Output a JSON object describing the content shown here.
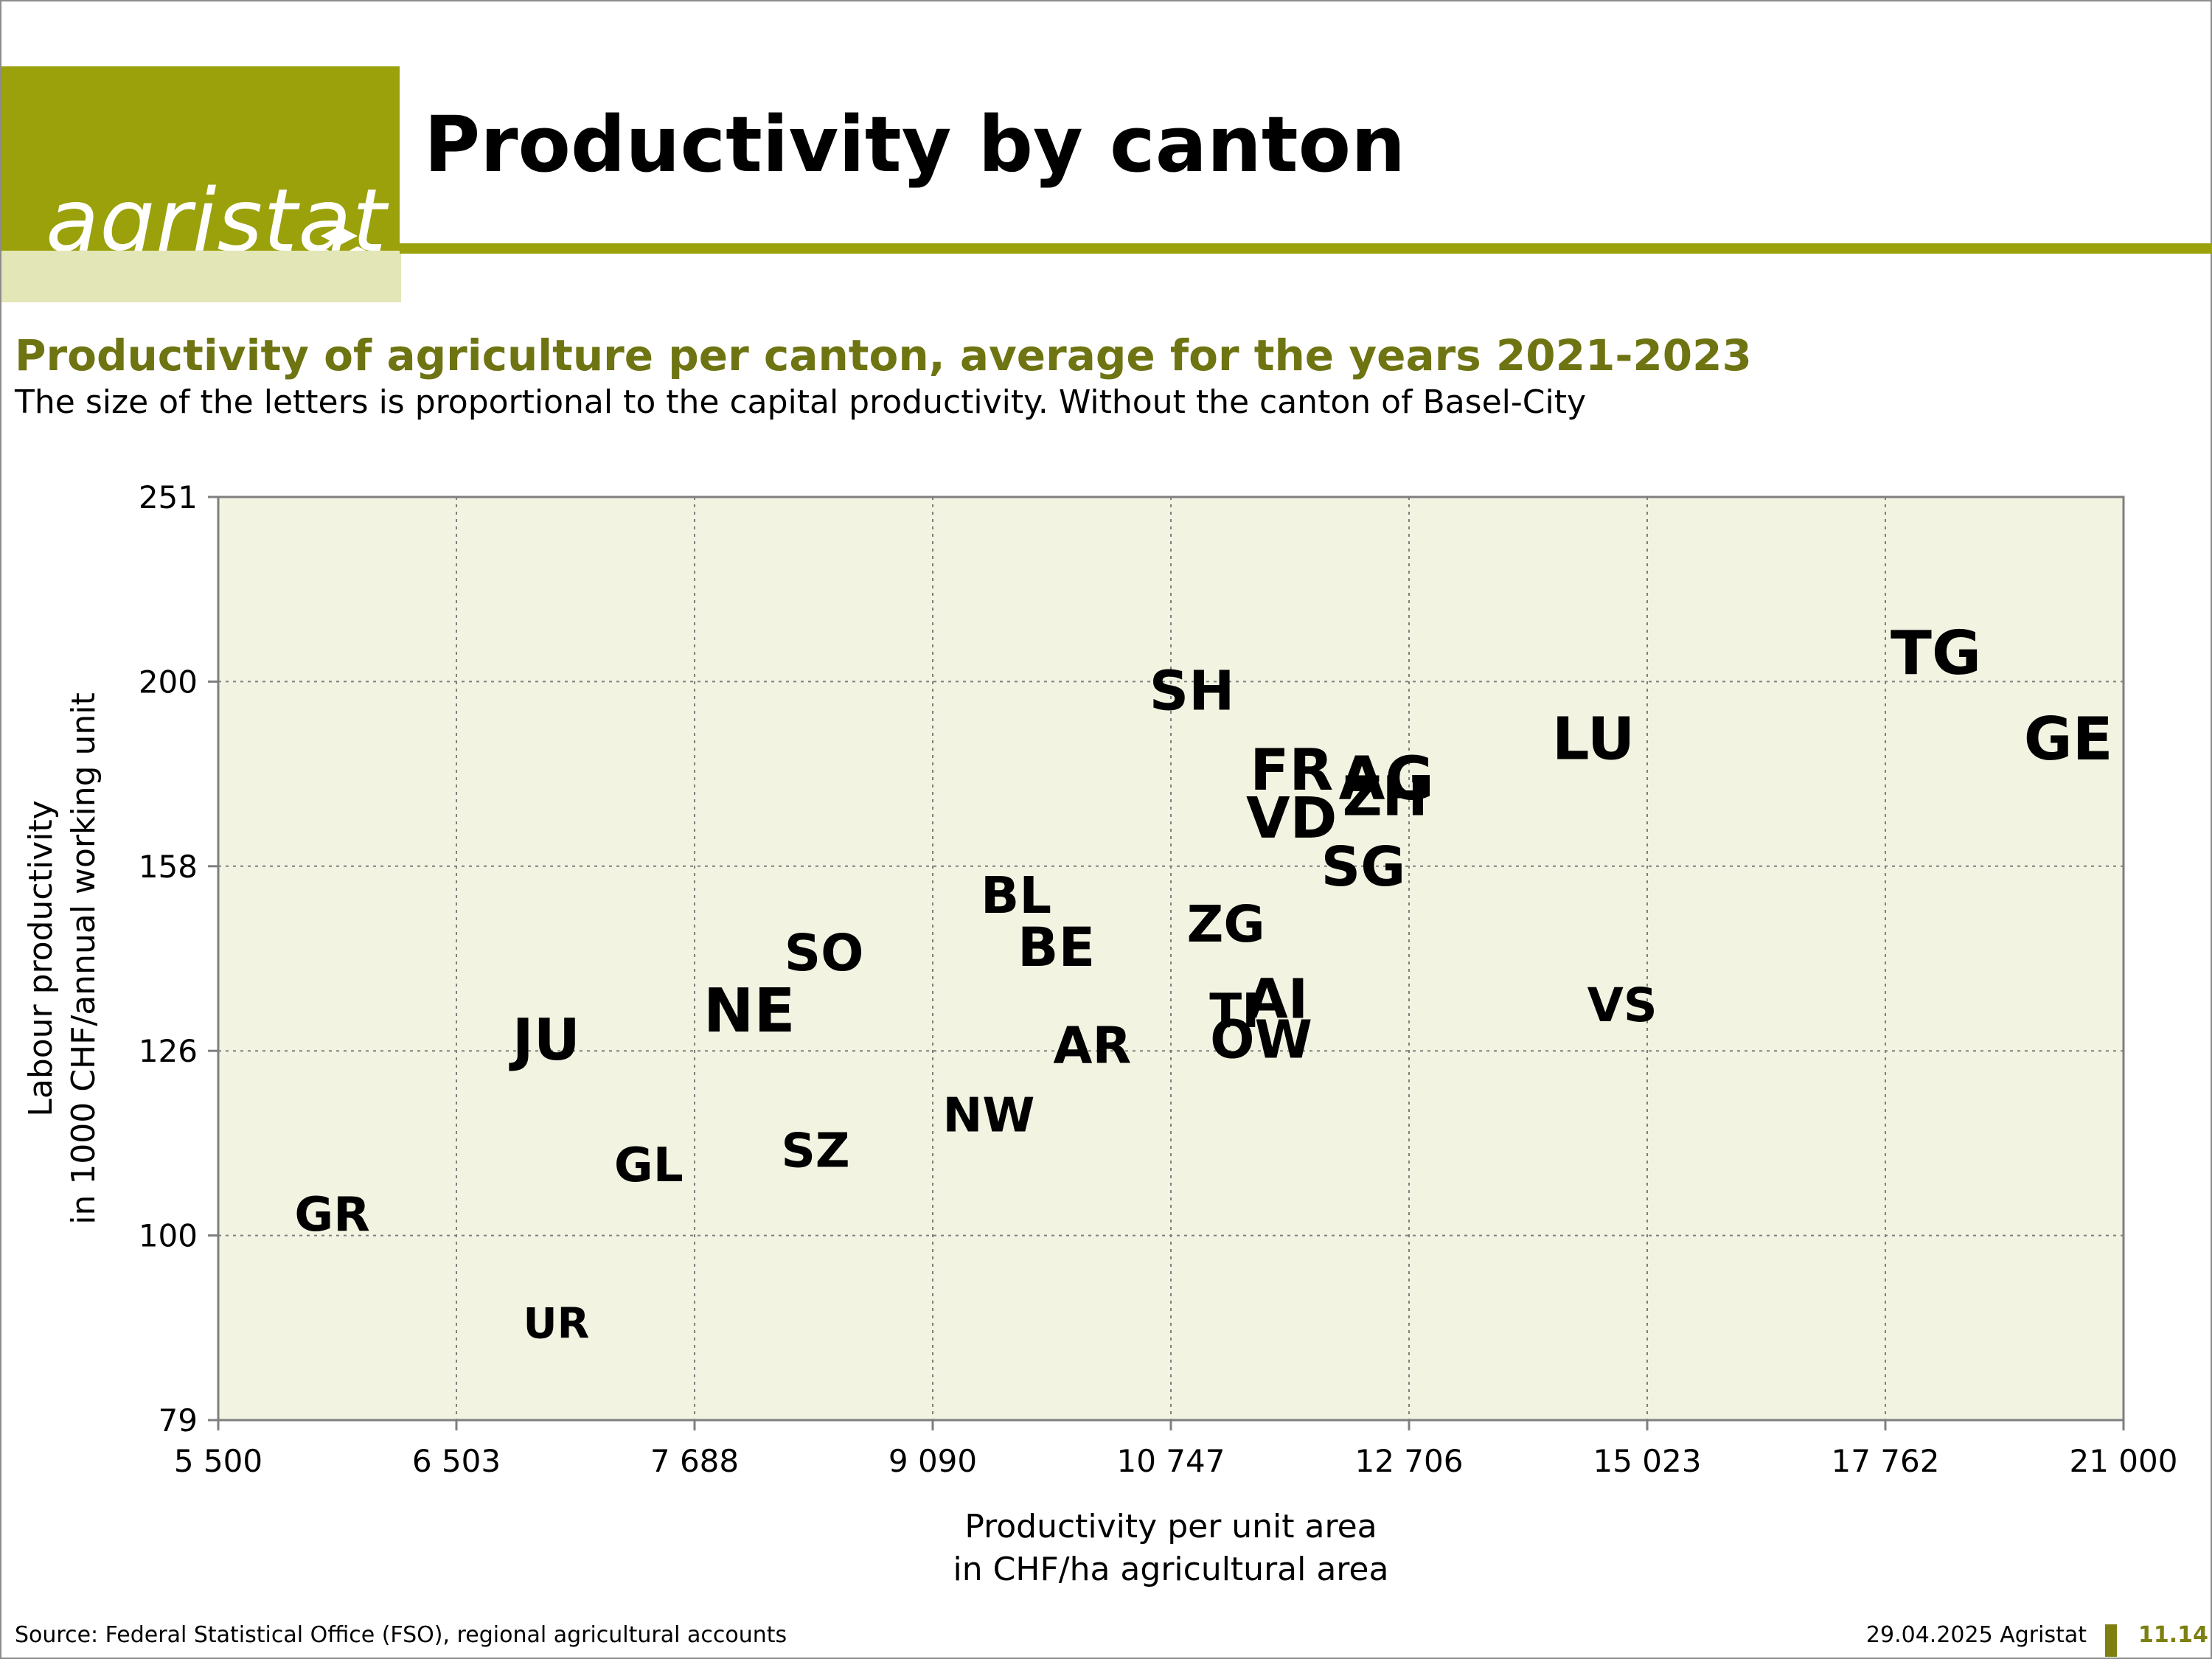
{
  "header": {
    "logo_text": "agristat",
    "page_title": "Productivity by canton"
  },
  "colors": {
    "brand": "#9aa10a",
    "brand_light": "#e3e6b6",
    "title": "#6e7411",
    "plot_background": "#f3f3e2",
    "grid": "#7f7f7f"
  },
  "chart_data": {
    "type": "scatter",
    "title": "Productivity of agriculture per canton, average for the years 2021-2023",
    "subtitle": "The size of the letters is proportional to the capital productivity. Without the canton of Basel-City",
    "xlabel": [
      "Productivity per unit area",
      "in CHF/ha agricultural area"
    ],
    "ylabel": [
      "Labour productivity",
      "in 1000 CHF/annual working unit"
    ],
    "xlim": [
      5500,
      21000
    ],
    "ylim": [
      79,
      251
    ],
    "x_ticks": [
      5500,
      6503,
      7688,
      9090,
      10747,
      12706,
      15023,
      17762,
      21000
    ],
    "x_tick_labels": [
      "5 500",
      "6 503",
      "7 688",
      "9 090",
      "10 747",
      "12 706",
      "15 023",
      "17 762",
      "21 000"
    ],
    "y_ticks": [
      79,
      100,
      126,
      158,
      200,
      251
    ],
    "y_tick_labels": [
      "79",
      "100",
      "126",
      "158",
      "200",
      "251"
    ],
    "grid": true,
    "marker": "text label sized by capital productivity",
    "points": [
      {
        "label": "TG",
        "x": 18450,
        "y": 208,
        "size": 1.0
      },
      {
        "label": "GE",
        "x": 20250,
        "y": 187,
        "size": 0.96
      },
      {
        "label": "SH",
        "x": 10920,
        "y": 198,
        "size": 0.82
      },
      {
        "label": "LU",
        "x": 14500,
        "y": 187,
        "size": 0.94
      },
      {
        "label": "AG",
        "x": 12520,
        "y": 178,
        "size": 0.98
      },
      {
        "label": "FR",
        "x": 11740,
        "y": 180,
        "size": 0.9
      },
      {
        "label": "ZH",
        "x": 12510,
        "y": 174,
        "size": 0.82
      },
      {
        "label": "VD",
        "x": 11740,
        "y": 169,
        "size": 0.88
      },
      {
        "label": "SG",
        "x": 12330,
        "y": 158,
        "size": 0.82
      },
      {
        "label": "BL",
        "x": 9670,
        "y": 153,
        "size": 0.68
      },
      {
        "label": "ZG",
        "x": 11200,
        "y": 148,
        "size": 0.68
      },
      {
        "label": "BE",
        "x": 9950,
        "y": 144,
        "size": 0.78
      },
      {
        "label": "SO",
        "x": 8450,
        "y": 143,
        "size": 0.68
      },
      {
        "label": "NE",
        "x": 8010,
        "y": 133,
        "size": 1.0
      },
      {
        "label": "AI",
        "x": 11620,
        "y": 135,
        "size": 0.8
      },
      {
        "label": "VS",
        "x": 14780,
        "y": 134,
        "size": 0.56
      },
      {
        "label": "TI",
        "x": 11270,
        "y": 133,
        "size": 0.58
      },
      {
        "label": "OW",
        "x": 11490,
        "y": 128,
        "size": 0.74
      },
      {
        "label": "JU",
        "x": 6950,
        "y": 128,
        "size": 0.9
      },
      {
        "label": "AR",
        "x": 10200,
        "y": 127,
        "size": 0.68
      },
      {
        "label": "NW",
        "x": 9480,
        "y": 117,
        "size": 0.58
      },
      {
        "label": "SZ",
        "x": 8400,
        "y": 112,
        "size": 0.58
      },
      {
        "label": "GL",
        "x": 7460,
        "y": 110,
        "size": 0.58
      },
      {
        "label": "GR",
        "x": 5980,
        "y": 103,
        "size": 0.58
      },
      {
        "label": "UR",
        "x": 7000,
        "y": 90,
        "size": 0.4
      }
    ]
  },
  "footer": {
    "source": "Source: Federal Statistical Office (FSO), regional agricultural accounts",
    "date_org": "29.04.2025 Agristat",
    "page_number": "11.14"
  }
}
